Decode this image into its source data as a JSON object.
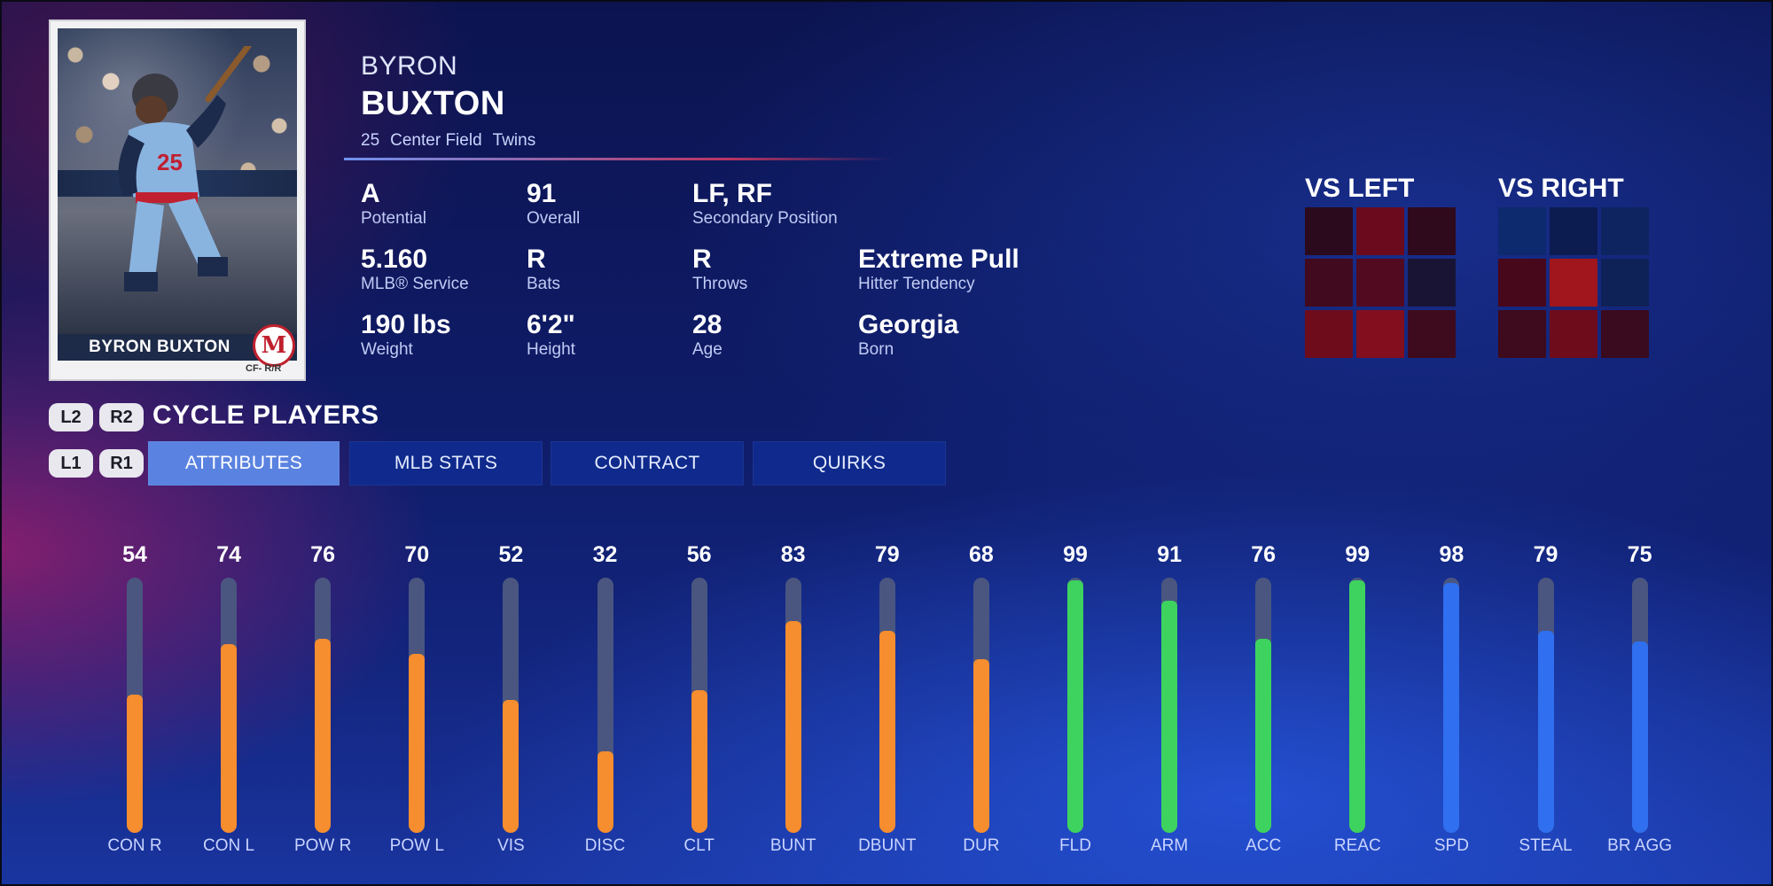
{
  "card": {
    "nameplate": "BYRON BUXTON",
    "position_bats_throws": "CF- R/R",
    "jersey_number": "25",
    "team_logo_letter": "M"
  },
  "player": {
    "first_name": "BYRON",
    "last_name": "BUXTON",
    "number": "25",
    "position": "Center Field",
    "team": "Twins"
  },
  "info": [
    {
      "value": "A",
      "label": "Potential"
    },
    {
      "value": "91",
      "label": "Overall"
    },
    {
      "value": "LF, RF",
      "label": "Secondary Position"
    },
    {
      "value": "5.160",
      "label": "MLB® Service"
    },
    {
      "value": "R",
      "label": "Bats"
    },
    {
      "value": "R",
      "label": "Throws"
    },
    {
      "value": "Extreme Pull",
      "label": "Hitter Tendency"
    },
    {
      "value": "190 lbs",
      "label": "Weight"
    },
    {
      "value": "6'2\"",
      "label": "Height"
    },
    {
      "value": "28",
      "label": "Age"
    },
    {
      "value": "Georgia",
      "label": "Born"
    }
  ],
  "hot_zones": {
    "vs_left": {
      "title": "VS LEFT",
      "cells": [
        "#2a0a1c",
        "#6a0a1c",
        "#2e0a1c",
        "#420a1e",
        "#520a20",
        "#1a1434",
        "#6e0c1c",
        "#820e1e",
        "#3e0a1e"
      ]
    },
    "vs_right": {
      "title": "VS RIGHT",
      "cells": [
        "#0e2a6e",
        "#0c1c50",
        "#0e2460",
        "#48081c",
        "#a0161c",
        "#0e2258",
        "#3e0a1e",
        "#6e0c1c",
        "#3a0a1e"
      ]
    }
  },
  "controls": {
    "l2": "L2",
    "r2": "R2",
    "l1": "L1",
    "r1": "R1",
    "cycle_title": "CYCLE PLAYERS"
  },
  "tabs": [
    {
      "label": "ATTRIBUTES",
      "active": true
    },
    {
      "label": "MLB STATS",
      "active": false
    },
    {
      "label": "CONTRACT",
      "active": false
    },
    {
      "label": "QUIRKS",
      "active": false
    }
  ],
  "colors": {
    "contact": "#f68d2e",
    "fielding": "#3ed35e",
    "running": "#2f6ff0",
    "track": "#4a5680",
    "active_tab": "#5a82e0",
    "tab": "#0f2a8c"
  },
  "chart_data": {
    "type": "bar",
    "categories": [
      "CON R",
      "CON L",
      "POW R",
      "POW L",
      "VIS",
      "DISC",
      "CLT",
      "BUNT",
      "DBUNT",
      "DUR",
      "FLD",
      "ARM",
      "ACC",
      "REAC",
      "SPD",
      "STEAL",
      "BR AGG"
    ],
    "values": [
      54,
      74,
      76,
      70,
      52,
      32,
      56,
      83,
      79,
      68,
      99,
      91,
      76,
      99,
      98,
      79,
      75
    ],
    "groups": [
      "contact",
      "contact",
      "contact",
      "contact",
      "contact",
      "contact",
      "contact",
      "contact",
      "contact",
      "contact",
      "fielding",
      "fielding",
      "fielding",
      "fielding",
      "running",
      "running",
      "running"
    ],
    "ylim": [
      0,
      100
    ]
  }
}
